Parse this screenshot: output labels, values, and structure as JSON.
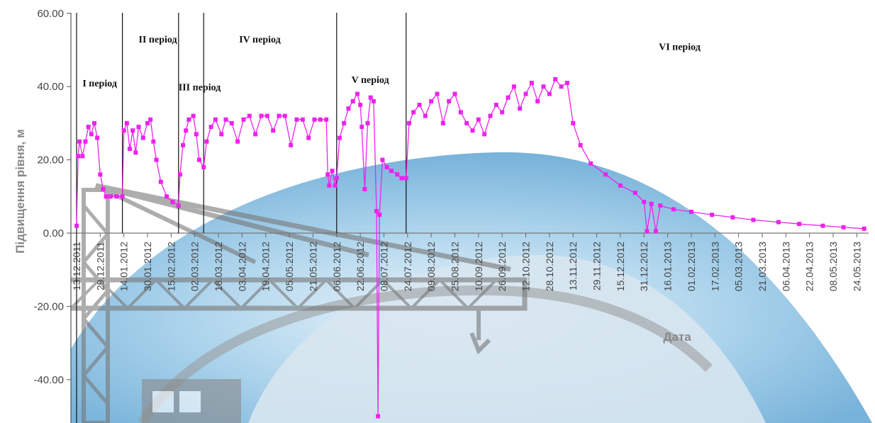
{
  "chart_data": {
    "type": "line",
    "title": "",
    "xlabel": "Дата",
    "ylabel": "Підвищення рівня, м",
    "ylim": [
      -50,
      60
    ],
    "y_ticks": [
      "60.00",
      "40.00",
      "20.00",
      "0.00",
      "-20.00",
      "-40.00"
    ],
    "y_tick_values": [
      60,
      40,
      20,
      0,
      -20,
      -40
    ],
    "x_range": [
      "2011-12-13",
      "2013-06-01"
    ],
    "x_ticks": [
      "13.12.2011",
      "29.12.2011",
      "14.01.2012",
      "30.01.2012",
      "15.02.2012",
      "02.03.2012",
      "18.03.2012",
      "03.04.2012",
      "19.04.2012",
      "05.05.2012",
      "21.05.2012",
      "06.06.2012",
      "22.06.2012",
      "08.07.2012",
      "24.07.2012",
      "09.08.2012",
      "25.08.2012",
      "10.09.2012",
      "26.09.2012",
      "12.10.2012",
      "28.10.2012",
      "13.11.2012",
      "29.11.2012",
      "15.12.2012",
      "31.12.2012",
      "16.01.2013",
      "01.02.2013",
      "17.02.2013",
      "05.03.2013",
      "21.03.2013",
      "06.04.2013",
      "22.04.2013",
      "08.05.2013",
      "24.05.2013"
    ],
    "period_boundaries": [
      "2011-12-13",
      "2012-01-13",
      "2012-02-20",
      "2012-03-08",
      "2012-06-06",
      "2012-07-23"
    ],
    "periods": [
      {
        "label": "І період",
        "anchor": "2011-12-17",
        "level": 40
      },
      {
        "label": "ІІ період",
        "anchor": "2012-01-24",
        "level": 52
      },
      {
        "label": "ІІІ період",
        "anchor": "2012-02-20",
        "level": 39
      },
      {
        "label": "IV період",
        "anchor": "2012-04-01",
        "level": 52
      },
      {
        "label": "V період",
        "anchor": "2012-06-16",
        "level": 41
      },
      {
        "label": "VІ період",
        "anchor": "2013-01-10",
        "level": 50
      }
    ],
    "grid": false,
    "series": [
      {
        "name": "",
        "color": "#ee22ee",
        "points": [
          [
            "2011-12-13",
            2
          ],
          [
            "2011-12-14",
            21
          ],
          [
            "2011-12-15",
            25
          ],
          [
            "2011-12-17",
            21
          ],
          [
            "2011-12-19",
            25
          ],
          [
            "2011-12-21",
            29
          ],
          [
            "2011-12-23",
            27
          ],
          [
            "2011-12-25",
            30
          ],
          [
            "2011-12-27",
            26
          ],
          [
            "2011-12-29",
            16
          ],
          [
            "2011-12-31",
            12
          ],
          [
            "2012-01-02",
            10
          ],
          [
            "2012-01-05",
            10
          ],
          [
            "2012-01-09",
            10
          ],
          [
            "2012-01-13",
            10
          ],
          [
            "2012-01-14",
            28
          ],
          [
            "2012-01-16",
            30
          ],
          [
            "2012-01-18",
            23
          ],
          [
            "2012-01-20",
            28
          ],
          [
            "2012-01-22",
            22
          ],
          [
            "2012-01-24",
            29
          ],
          [
            "2012-01-27",
            26
          ],
          [
            "2012-01-30",
            30
          ],
          [
            "2012-02-01",
            31
          ],
          [
            "2012-02-03",
            25
          ],
          [
            "2012-02-05",
            20
          ],
          [
            "2012-02-08",
            14
          ],
          [
            "2012-02-12",
            10
          ],
          [
            "2012-02-16",
            8.5
          ],
          [
            "2012-02-20",
            7.5
          ],
          [
            "2012-02-21",
            16
          ],
          [
            "2012-02-23",
            24
          ],
          [
            "2012-02-25",
            28
          ],
          [
            "2012-02-27",
            31
          ],
          [
            "2012-03-01",
            32
          ],
          [
            "2012-03-03",
            27
          ],
          [
            "2012-03-05",
            20
          ],
          [
            "2012-03-08",
            18
          ],
          [
            "2012-03-10",
            25
          ],
          [
            "2012-03-13",
            29
          ],
          [
            "2012-03-16",
            31
          ],
          [
            "2012-03-20",
            27
          ],
          [
            "2012-03-23",
            31
          ],
          [
            "2012-03-27",
            30
          ],
          [
            "2012-03-31",
            25
          ],
          [
            "2012-04-04",
            31
          ],
          [
            "2012-04-08",
            32
          ],
          [
            "2012-04-12",
            27
          ],
          [
            "2012-04-16",
            32
          ],
          [
            "2012-04-20",
            32
          ],
          [
            "2012-04-24",
            28
          ],
          [
            "2012-04-28",
            32
          ],
          [
            "2012-05-02",
            32
          ],
          [
            "2012-05-06",
            24
          ],
          [
            "2012-05-10",
            31
          ],
          [
            "2012-05-14",
            31
          ],
          [
            "2012-05-18",
            26
          ],
          [
            "2012-05-22",
            31
          ],
          [
            "2012-05-26",
            31
          ],
          [
            "2012-05-30",
            31
          ],
          [
            "2012-05-31",
            16
          ],
          [
            "2012-06-01",
            13
          ],
          [
            "2012-06-03",
            17
          ],
          [
            "2012-06-05",
            13
          ],
          [
            "2012-06-06",
            15
          ],
          [
            "2012-06-08",
            26
          ],
          [
            "2012-06-11",
            30
          ],
          [
            "2012-06-14",
            34
          ],
          [
            "2012-06-17",
            36
          ],
          [
            "2012-06-20",
            38
          ],
          [
            "2012-06-22",
            35
          ],
          [
            "2012-06-23",
            29
          ],
          [
            "2012-06-25",
            12
          ],
          [
            "2012-06-27",
            30
          ],
          [
            "2012-06-29",
            37
          ],
          [
            "2012-07-01",
            36
          ],
          [
            "2012-07-03",
            6
          ],
          [
            "2012-07-04",
            -50
          ],
          [
            "2012-07-05",
            5
          ],
          [
            "2012-07-07",
            20
          ],
          [
            "2012-07-10",
            18
          ],
          [
            "2012-07-13",
            17
          ],
          [
            "2012-07-17",
            16
          ],
          [
            "2012-07-20",
            15
          ],
          [
            "2012-07-23",
            15
          ],
          [
            "2012-07-25",
            30
          ],
          [
            "2012-07-28",
            33
          ],
          [
            "2012-08-01",
            35
          ],
          [
            "2012-08-05",
            32
          ],
          [
            "2012-08-09",
            36
          ],
          [
            "2012-08-13",
            38
          ],
          [
            "2012-08-17",
            30
          ],
          [
            "2012-08-21",
            36
          ],
          [
            "2012-08-25",
            38
          ],
          [
            "2012-08-29",
            33
          ],
          [
            "2012-09-02",
            30
          ],
          [
            "2012-09-06",
            28
          ],
          [
            "2012-09-10",
            31
          ],
          [
            "2012-09-14",
            27
          ],
          [
            "2012-09-18",
            32
          ],
          [
            "2012-09-22",
            35
          ],
          [
            "2012-09-26",
            33
          ],
          [
            "2012-09-30",
            37
          ],
          [
            "2012-10-04",
            40
          ],
          [
            "2012-10-08",
            34
          ],
          [
            "2012-10-12",
            38
          ],
          [
            "2012-10-16",
            41
          ],
          [
            "2012-10-20",
            36
          ],
          [
            "2012-10-24",
            40
          ],
          [
            "2012-10-28",
            38
          ],
          [
            "2012-11-01",
            42
          ],
          [
            "2012-11-05",
            40
          ],
          [
            "2012-11-09",
            41
          ],
          [
            "2012-11-13",
            30
          ],
          [
            "2012-11-18",
            24
          ],
          [
            "2012-11-25",
            19
          ],
          [
            "2012-12-05",
            16
          ],
          [
            "2012-12-15",
            13
          ],
          [
            "2012-12-25",
            11
          ],
          [
            "2012-12-31",
            8.5
          ],
          [
            "2013-01-02",
            0.5
          ],
          [
            "2013-01-05",
            8
          ],
          [
            "2013-01-08",
            0.5
          ],
          [
            "2013-01-11",
            7.5
          ],
          [
            "2013-01-20",
            6.5
          ],
          [
            "2013-02-01",
            5.8
          ],
          [
            "2013-02-15",
            5
          ],
          [
            "2013-03-01",
            4.3
          ],
          [
            "2013-03-15",
            3.6
          ],
          [
            "2013-04-01",
            3
          ],
          [
            "2013-04-15",
            2.5
          ],
          [
            "2013-05-01",
            2
          ],
          [
            "2013-05-15",
            1.6
          ],
          [
            "2013-05-29",
            1.2
          ]
        ]
      }
    ]
  }
}
